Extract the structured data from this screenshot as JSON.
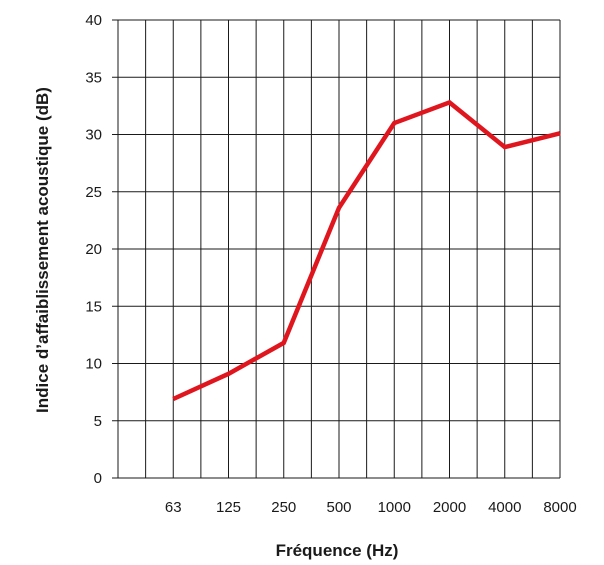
{
  "chart_data": {
    "type": "line",
    "title": "",
    "xlabel": "Fréquence (Hz)",
    "ylabel": "Indice d’affaiblissement acoustique (dB)",
    "categories": [
      "63",
      "125",
      "250",
      "500",
      "1000",
      "2000",
      "4000",
      "8000"
    ],
    "series": [
      {
        "values": [
          6.9,
          9.1,
          11.8,
          23.6,
          31.0,
          32.8,
          28.9,
          30.1
        ]
      }
    ],
    "ylim": [
      0,
      40
    ],
    "yticks": [
      "0",
      "5",
      "10",
      "15",
      "20",
      "25",
      "30",
      "35",
      "40"
    ],
    "grid": true,
    "colors": {
      "line": "#e0161f",
      "grid": "#1a1a1a",
      "text": "#1a1a1a"
    }
  }
}
